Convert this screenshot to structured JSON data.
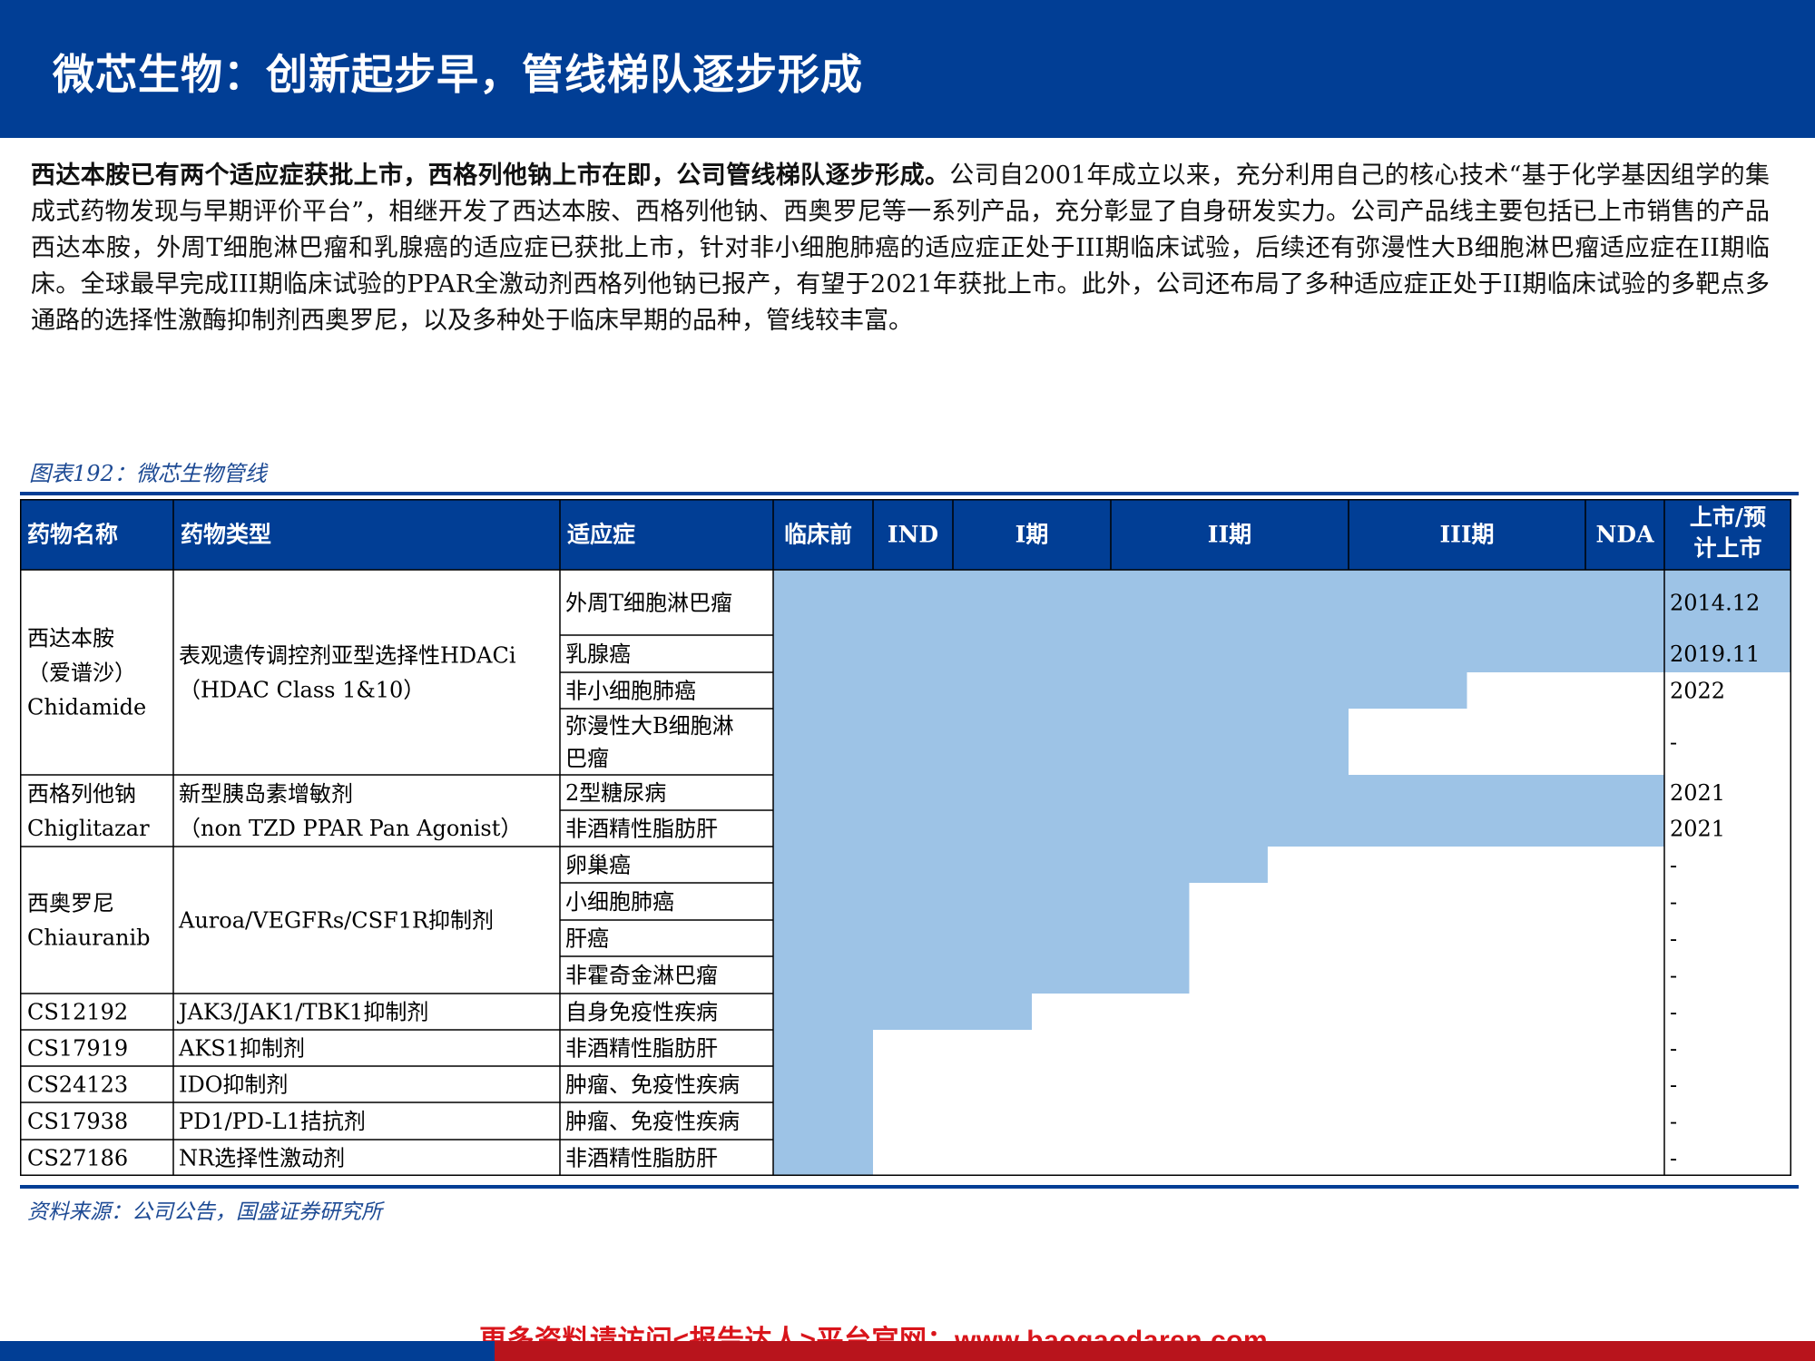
{
  "header": {
    "title": "微芯生物：创新起步早，管线梯队逐步形成"
  },
  "intro": {
    "bold": "西达本胺已有两个适应症获批上市，西格列他钠上市在即，公司管线梯队逐步形成。",
    "text": "公司自2001年成立以来，充分利用自己的核心技术“基于化学基因组学的集成式药物发现与早期评价平台”，相继开发了西达本胺、西格列他钠、西奥罗尼等一系列产品，充分彰显了自身研发实力。公司产品线主要包括已上市销售的产品西达本胺，外周T细胞淋巴瘤和乳腺癌的适应症已获批上市，针对非小细胞肺癌的适应症正处于III期临床试验，后续还有弥漫性大B细胞淋巴瘤适应症在II期临床。全球最早完成III期临床试验的PPAR全激动剂西格列他钠已报产，有望于2021年获批上市。此外，公司还布局了多种适应症正处于II期临床试验的多靶点多通路的选择性激酶抑制剂西奥罗尼，以及多种处于临床早期的品种，管线较丰富。"
  },
  "figure": {
    "caption": "图表192：微芯生物管线",
    "source": "资料来源：公司公告，国盛证券研究所"
  },
  "table": {
    "headers": [
      "药物名称",
      "药物类型",
      "适应症",
      "临床前",
      "IND",
      "I期",
      "II期",
      "III期",
      "NDA",
      "上市/预计上市"
    ],
    "header_last_lines": [
      "上市/预",
      "计上市"
    ],
    "stage_levels": [
      "临床前",
      "IND",
      "I期",
      "II期",
      "III期",
      "NDA",
      "上市"
    ],
    "colors": {
      "header_bg": "#013e95",
      "progress_fill": "#9dc3e6",
      "border": "#000000"
    },
    "drugs": [
      {
        "name_lines": [
          "西达本胺",
          "（爱谱沙）",
          "Chidamide"
        ],
        "type_lines": [
          "表观遗传调控剂亚型选择性HDACi",
          "（HDAC Class 1&10）"
        ],
        "indications": [
          {
            "lines": [
              "外周T细胞淋巴瘤"
            ],
            "progress": 7.0,
            "launch": "2014.12"
          },
          {
            "lines": [
              "乳腺癌"
            ],
            "progress": 7.0,
            "launch": "2019.11"
          },
          {
            "lines": [
              "非小细胞肺癌"
            ],
            "progress": 4.5,
            "launch": "2022"
          },
          {
            "lines": [
              "弥漫性大B细胞淋",
              "巴瘤"
            ],
            "progress": 4.0,
            "launch": "-"
          }
        ]
      },
      {
        "name_lines": [
          "西格列他钠",
          "Chiglitazar"
        ],
        "type_lines": [
          "新型胰岛素增敏剂",
          "（non  TZD PPAR Pan Agonist）"
        ],
        "indications": [
          {
            "lines": [
              "2型糖尿病"
            ],
            "progress": 6.0,
            "launch": "2021"
          },
          {
            "lines": [
              "非酒精性脂肪肝"
            ],
            "progress": 6.0,
            "launch": "2021"
          }
        ]
      },
      {
        "name_lines": [
          "西奥罗尼",
          "Chiauranib"
        ],
        "type_lines": [
          "Auroa/VEGFRs/CSF1R抑制剂"
        ],
        "indications": [
          {
            "lines": [
              "卵巢癌"
            ],
            "progress": 3.66,
            "launch": "-"
          },
          {
            "lines": [
              "小细胞肺癌"
            ],
            "progress": 3.33,
            "launch": "-"
          },
          {
            "lines": [
              "肝癌"
            ],
            "progress": 3.33,
            "launch": "-"
          },
          {
            "lines": [
              "非霍奇金淋巴瘤"
            ],
            "progress": 3.33,
            "launch": "-"
          }
        ]
      },
      {
        "name_lines": [
          "CS12192"
        ],
        "type_lines": [
          "JAK3/JAK1/TBK1抑制剂"
        ],
        "indications": [
          {
            "lines": [
              "自身免疫性疾病"
            ],
            "progress": 2.5,
            "launch": "-"
          }
        ]
      },
      {
        "name_lines": [
          "CS17919"
        ],
        "type_lines": [
          "AKS1抑制剂"
        ],
        "indications": [
          {
            "lines": [
              "非酒精性脂肪肝"
            ],
            "progress": 1.0,
            "launch": "-"
          }
        ]
      },
      {
        "name_lines": [
          "CS24123"
        ],
        "type_lines": [
          "IDO抑制剂"
        ],
        "indications": [
          {
            "lines": [
              "肿瘤、免疫性疾病"
            ],
            "progress": 1.0,
            "launch": "-"
          }
        ]
      },
      {
        "name_lines": [
          "CS17938"
        ],
        "type_lines": [
          "PD1/PD-L1拮抗剂"
        ],
        "indications": [
          {
            "lines": [
              "肿瘤、免疫性疾病"
            ],
            "progress": 1.0,
            "launch": "-"
          }
        ]
      },
      {
        "name_lines": [
          "CS27186"
        ],
        "type_lines": [
          "NR选择性激动剂"
        ],
        "indications": [
          {
            "lines": [
              "非酒精性脂肪肝"
            ],
            "progress": 1.0,
            "launch": "-"
          }
        ]
      }
    ]
  },
  "footer": {
    "link_text": "更多资料请访问<报告达人>平台官网：www.baogaodaren.com"
  }
}
